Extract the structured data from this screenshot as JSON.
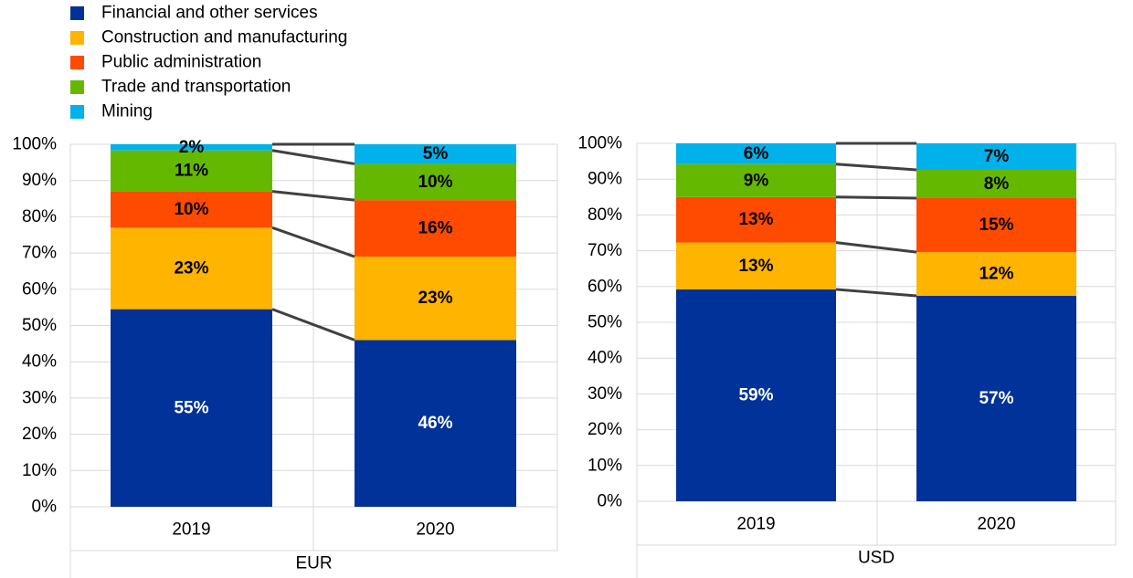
{
  "legend": [
    {
      "label": "Financial and other services",
      "color": "#003299"
    },
    {
      "label": "Construction and manufacturing",
      "color": "#FFB400"
    },
    {
      "label": "Public administration",
      "color": "#FF4B00"
    },
    {
      "label": "Trade and transportation",
      "color": "#65B800"
    },
    {
      "label": "Mining",
      "color": "#00B1EA"
    }
  ],
  "chart_data": [
    {
      "type": "bar",
      "stacked": true,
      "group_label": "EUR",
      "categories": [
        "2019",
        "2020"
      ],
      "y_ticks": [
        "0%",
        "10%",
        "20%",
        "30%",
        "40%",
        "50%",
        "60%",
        "70%",
        "80%",
        "90%",
        "100%"
      ],
      "ylim": [
        0,
        100
      ],
      "series": [
        {
          "name": "Financial and other services",
          "values": [
            54.5,
            46
          ],
          "labels": [
            "55%",
            "46%"
          ]
        },
        {
          "name": "Construction and manufacturing",
          "values": [
            22.5,
            23
          ],
          "labels": [
            "23%",
            "23%"
          ]
        },
        {
          "name": "Public administration",
          "values": [
            10,
            15.6
          ],
          "labels": [
            "10%",
            "16%"
          ]
        },
        {
          "name": "Trade and transportation",
          "values": [
            11.3,
            10
          ],
          "labels": [
            "11%",
            "10%"
          ]
        },
        {
          "name": "Mining",
          "values": [
            1.7,
            5.4
          ],
          "labels": [
            "2%",
            "5%"
          ]
        }
      ]
    },
    {
      "type": "bar",
      "stacked": true,
      "group_label": "USD",
      "categories": [
        "2019",
        "2020"
      ],
      "y_ticks": [
        "0%",
        "10%",
        "20%",
        "30%",
        "40%",
        "50%",
        "60%",
        "70%",
        "80%",
        "90%",
        "100%"
      ],
      "ylim": [
        0,
        100
      ],
      "series": [
        {
          "name": "Financial and other services",
          "values": [
            59.2,
            57.4
          ],
          "labels": [
            "59%",
            "57%"
          ]
        },
        {
          "name": "Construction and manufacturing",
          "values": [
            13.1,
            12.2
          ],
          "labels": [
            "13%",
            "12%"
          ]
        },
        {
          "name": "Public administration",
          "values": [
            12.7,
            15.1
          ],
          "labels": [
            "13%",
            "15%"
          ]
        },
        {
          "name": "Trade and transportation",
          "values": [
            9.2,
            7.9
          ],
          "labels": [
            "9%",
            "8%"
          ]
        },
        {
          "name": "Mining",
          "values": [
            5.8,
            7.4
          ],
          "labels": [
            "6%",
            "7%"
          ]
        }
      ]
    }
  ]
}
